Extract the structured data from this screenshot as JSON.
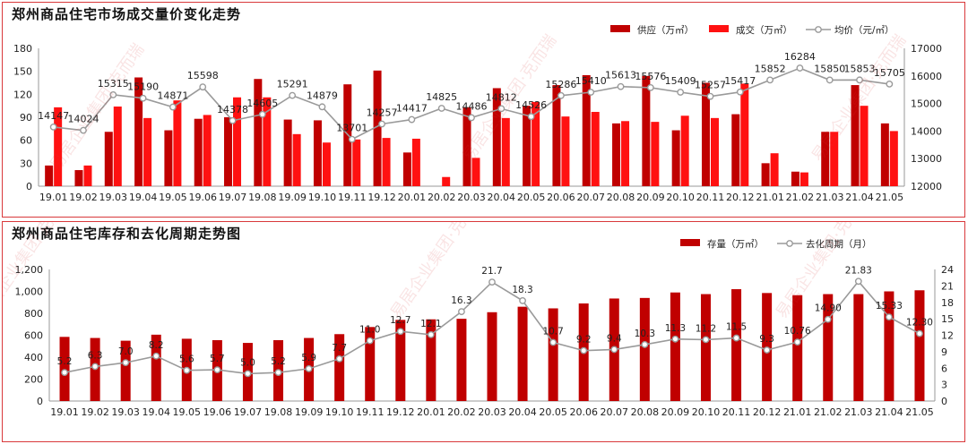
{
  "chart_data": [
    {
      "type": "bar",
      "title": "郑州商品住宅市场成交量价变化走势",
      "categories": [
        "19.01",
        "19.02",
        "19.03",
        "19.04",
        "19.05",
        "19.06",
        "19.07",
        "19.08",
        "19.09",
        "19.10",
        "19.11",
        "19.12",
        "20.01",
        "20.02",
        "20.03",
        "20.04",
        "20.05",
        "20.06",
        "20.07",
        "20.08",
        "20.09",
        "20.10",
        "20.11",
        "20.12",
        "21.01",
        "21.02",
        "21.03",
        "21.04",
        "21.05"
      ],
      "series": [
        {
          "name": "供应（万㎡）",
          "kind": "bar",
          "axis": "left",
          "color": "#c00000",
          "values": [
            27,
            21,
            71,
            142,
            73,
            88,
            90,
            140,
            87,
            86,
            133,
            151,
            44,
            0,
            103,
            128,
            105,
            132,
            145,
            82,
            144,
            73,
            135,
            94,
            30,
            19,
            71,
            132,
            82
          ]
        },
        {
          "name": "成交（万㎡）",
          "kind": "bar",
          "axis": "left",
          "color": "#ff1111",
          "values": [
            103,
            27,
            104,
            89,
            112,
            93,
            116,
            116,
            68,
            57,
            61,
            63,
            62,
            12,
            37,
            89,
            110,
            91,
            97,
            85,
            84,
            92,
            89,
            134,
            43,
            18,
            71,
            105,
            72
          ]
        },
        {
          "name": "均价（元/㎡）",
          "kind": "line",
          "axis": "right",
          "color": "#9a9a9a",
          "values": [
            14147,
            14024,
            15315,
            15190,
            14871,
            15598,
            14378,
            14605,
            15291,
            14879,
            13701,
            14257,
            14417,
            14825,
            14486,
            14812,
            14526,
            15286,
            15410,
            15613,
            15576,
            15409,
            15257,
            15417,
            15852,
            16284,
            15850,
            15853,
            15705
          ],
          "labels": [
            "14147",
            "14024",
            "15315",
            "15190",
            "14871",
            "15598",
            "14378",
            "14605",
            "15291",
            "14879",
            "13701",
            "14257",
            "14417",
            "14825",
            "14486",
            "14812",
            "14526",
            "15286",
            "15410",
            "15613",
            "15576",
            "15409",
            "15257",
            "15417",
            "15852",
            "16284",
            "15850",
            "15853",
            "15705"
          ]
        }
      ],
      "y_left": {
        "lim": [
          0,
          180
        ],
        "ticks": [
          "0",
          "30",
          "60",
          "90",
          "120",
          "150",
          "180"
        ]
      },
      "y_right": {
        "lim": [
          12000,
          17000
        ],
        "ticks": [
          "12000",
          "13000",
          "14000",
          "15000",
          "16000",
          "17000"
        ]
      },
      "legend": "top-right",
      "grid": false
    },
    {
      "type": "bar",
      "title": "郑州商品住宅库存和去化周期走势图",
      "categories": [
        "19.01",
        "19.02",
        "19.03",
        "19.04",
        "19.05",
        "19.06",
        "19.07",
        "19.08",
        "19.09",
        "19.10",
        "19.11",
        "19.12",
        "20.01",
        "20.02",
        "20.03",
        "20.04",
        "20.05",
        "20.06",
        "20.07",
        "20.08",
        "20.09",
        "20.10",
        "20.11",
        "20.12",
        "21.01",
        "21.02",
        "21.03",
        "21.04",
        "21.05"
      ],
      "series": [
        {
          "name": "存量（万㎡）",
          "kind": "bar",
          "axis": "left",
          "color": "#c00000",
          "values": [
            585,
            575,
            550,
            605,
            568,
            555,
            530,
            555,
            575,
            610,
            675,
            740,
            745,
            750,
            810,
            860,
            845,
            890,
            935,
            940,
            990,
            975,
            1020,
            985,
            965,
            975,
            975,
            1000,
            1010
          ]
        },
        {
          "name": "去化周期（月）",
          "kind": "line",
          "axis": "right",
          "color": "#9a9a9a",
          "values": [
            5.2,
            6.3,
            7.0,
            8.2,
            5.6,
            5.7,
            5.0,
            5.2,
            5.9,
            7.7,
            11.0,
            12.7,
            12.1,
            16.3,
            21.7,
            18.3,
            10.7,
            9.2,
            9.4,
            10.3,
            11.3,
            11.2,
            11.5,
            9.3,
            10.76,
            14.9,
            21.83,
            15.33,
            12.3
          ],
          "labels": [
            "5.2",
            "6.3",
            "7.0",
            "8.2",
            "5.6",
            "5.7",
            "5.0",
            "5.2",
            "5.9",
            "7.7",
            "11.0",
            "12.7",
            "12.1",
            "16.3",
            "21.7",
            "18.3",
            "10.7",
            "9.2",
            "9.4",
            "10.3",
            "11.3",
            "11.2",
            "11.5",
            "9.3",
            "10.76",
            "14.90",
            "21.83",
            "15.33",
            "12.30"
          ]
        }
      ],
      "y_left": {
        "lim": [
          0,
          1200
        ],
        "ticks": [
          "0",
          "200",
          "400",
          "600",
          "800",
          "1,000",
          "1,200"
        ]
      },
      "y_right": {
        "lim": [
          0,
          24
        ],
        "ticks": [
          "0",
          "3",
          "6",
          "9",
          "12",
          "15",
          "18",
          "21",
          "24"
        ]
      },
      "legend": "top-right",
      "grid": false
    }
  ],
  "watermark": "易居企业集团·克而瑞"
}
